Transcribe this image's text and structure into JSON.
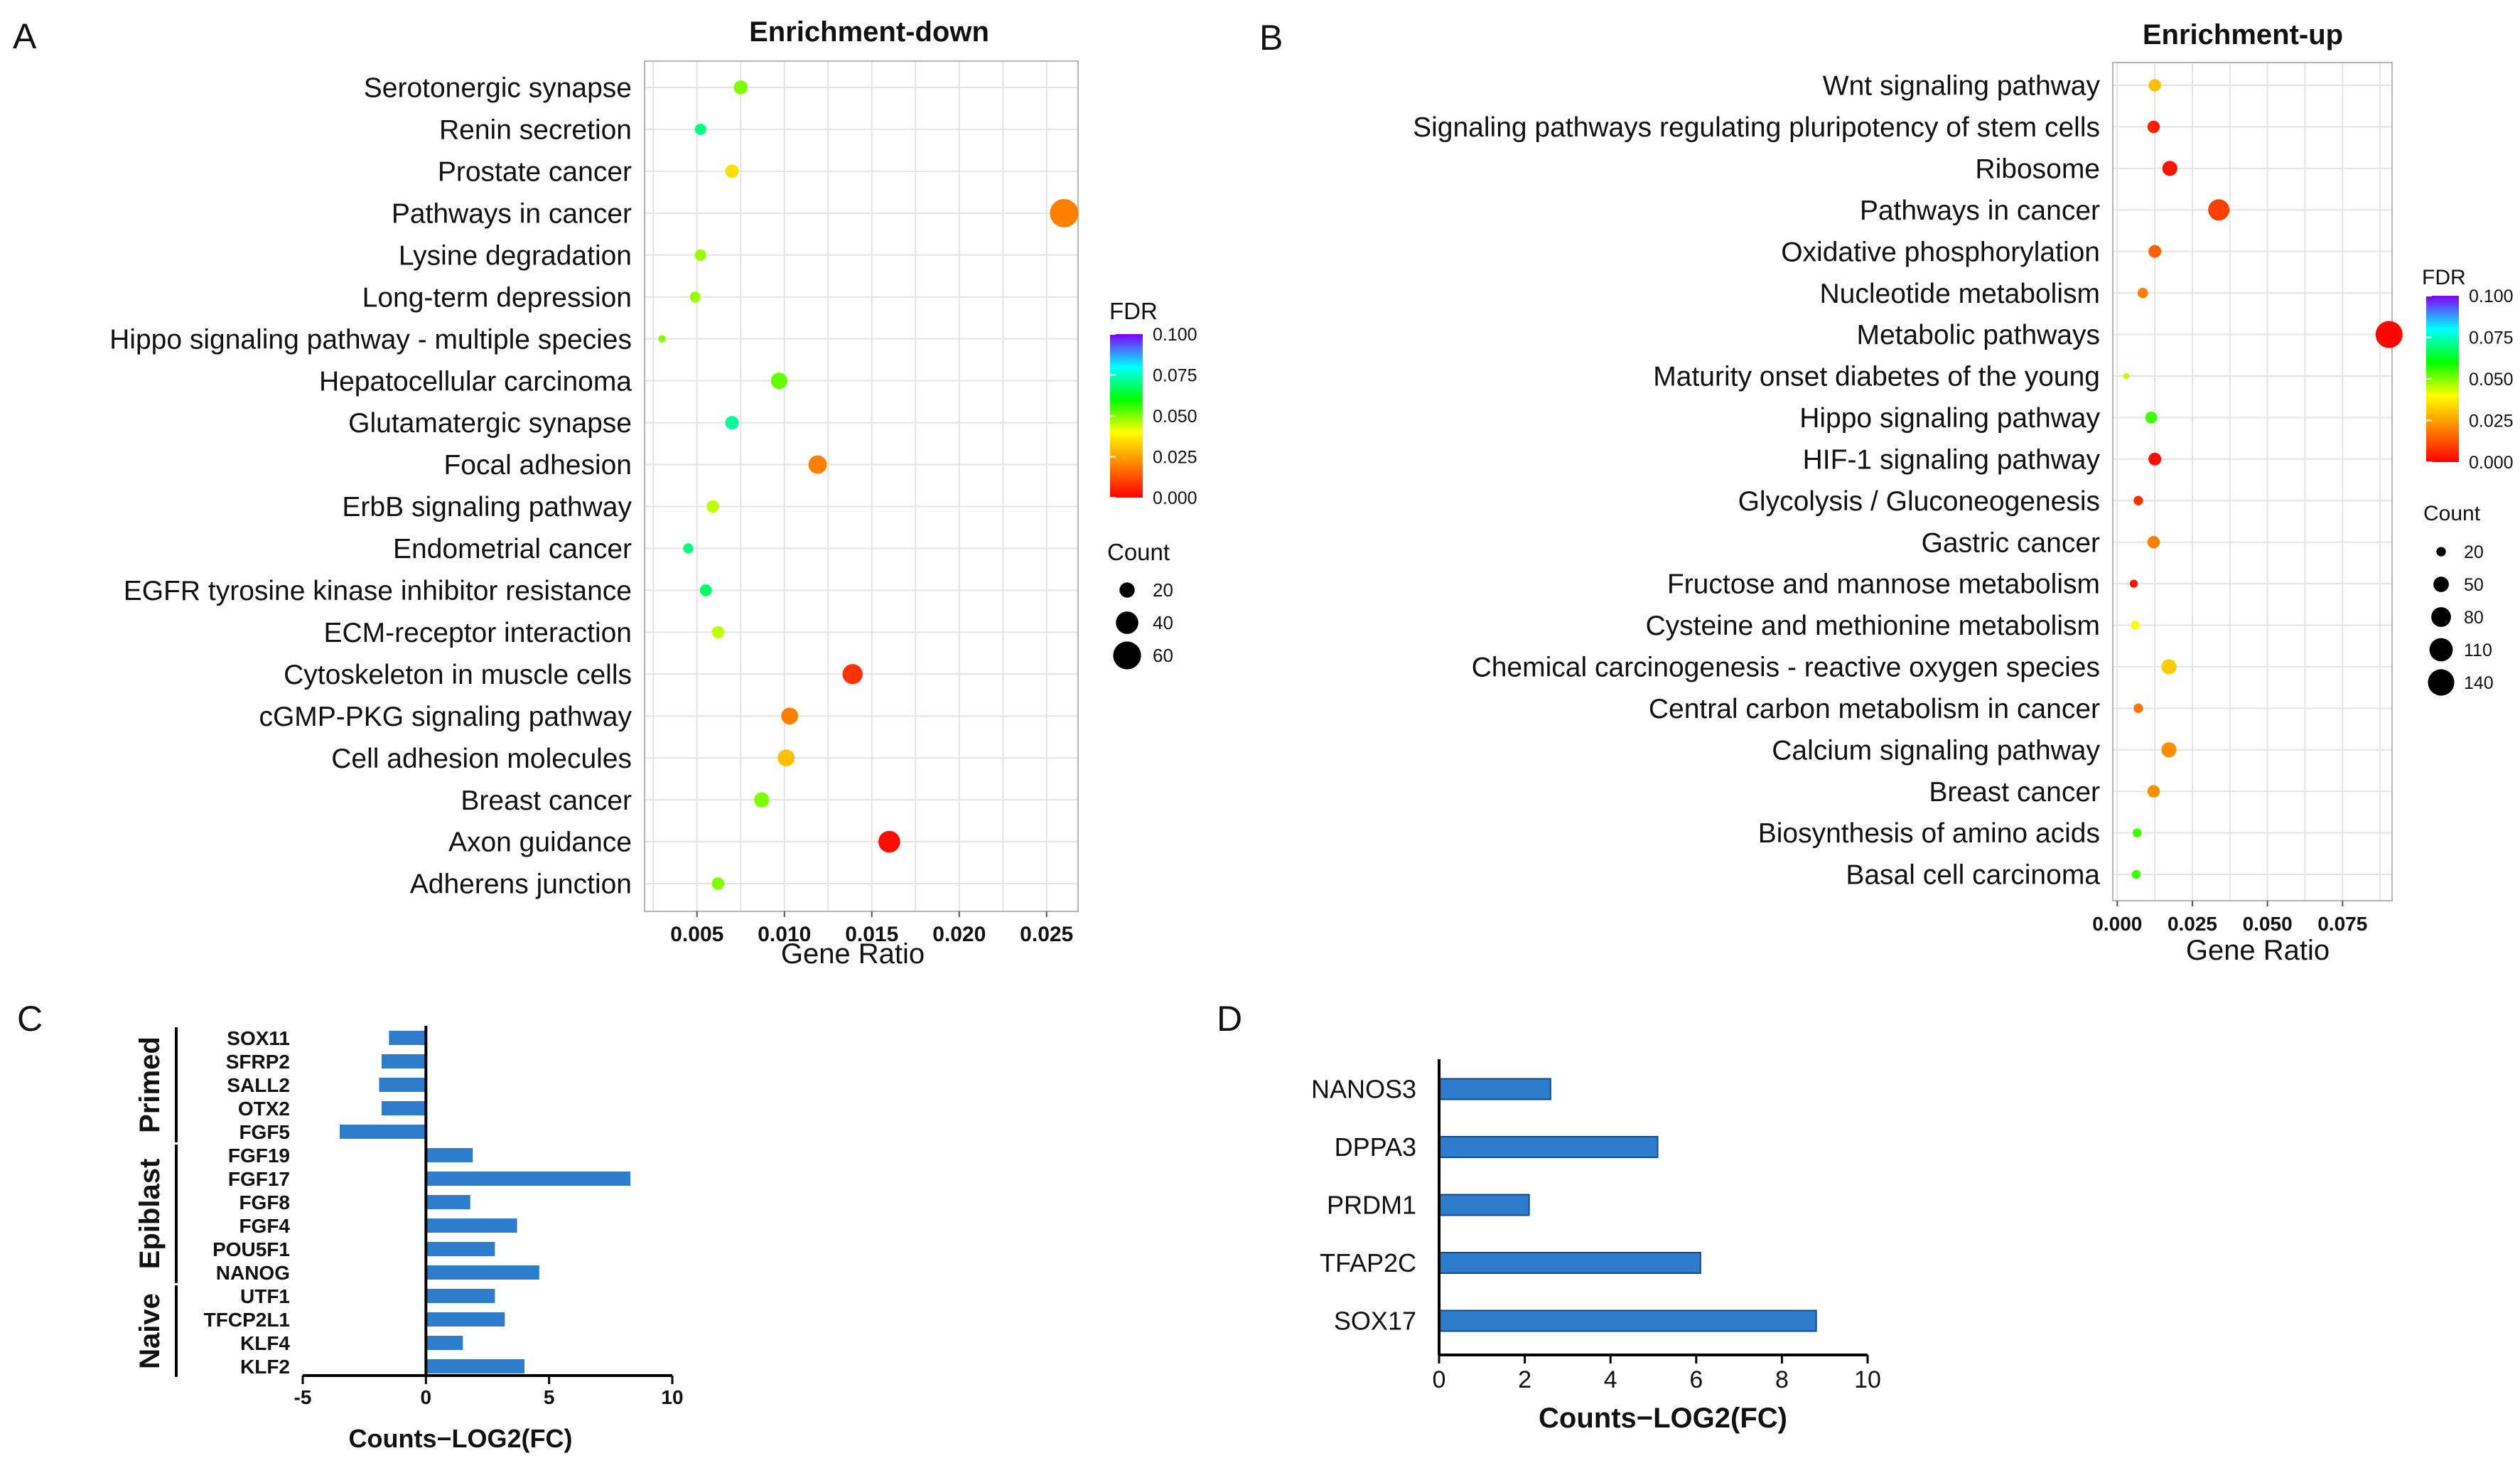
{
  "panels": {
    "a": "A",
    "b": "B",
    "c": "C",
    "d": "D"
  },
  "colors": {
    "bar": "#2e7ccc",
    "grid": "#e4e4e4",
    "frame": "#b5b5b5",
    "fdr_stops": [
      "#ff0000",
      "#ff8000",
      "#ffff00",
      "#00ff00",
      "#00ffff",
      "#8000ff"
    ]
  },
  "chart_data": [
    {
      "id": "A",
      "type": "scatter",
      "title": "Enrichment-down",
      "xlabel": "Gene Ratio",
      "xlim": [
        0.002,
        0.0268
      ],
      "xticks": [
        0.005,
        0.01,
        0.015,
        0.02,
        0.025
      ],
      "xtick_labels": [
        "0.005",
        "0.010",
        "0.015",
        "0.020",
        "0.025"
      ],
      "categories": [
        "Serotonergic synapse",
        "Renin secretion",
        "Prostate cancer",
        "Pathways in cancer",
        "Lysine degradation",
        "Long-term depression",
        "Hippo signaling pathway - multiple species",
        "Hepatocellular carcinoma",
        "Glutamatergic synapse",
        "Focal adhesion",
        "ErbB signaling pathway",
        "Endometrial cancer",
        "EGFR tyrosine kinase inhibitor resistance",
        "ECM-receptor interaction",
        "Cytoskeleton in muscle cells",
        "cGMP-PKG signaling pathway",
        "Cell adhesion molecules",
        "Breast cancer",
        "Axon guidance",
        "Adherens junction"
      ],
      "gene_ratio": [
        0.0075,
        0.0052,
        0.007,
        0.026,
        0.0052,
        0.0049,
        0.003,
        0.0097,
        0.007,
        0.0119,
        0.0059,
        0.0045,
        0.0055,
        0.0062,
        0.0139,
        0.0103,
        0.0101,
        0.0087,
        0.016,
        0.0062
      ],
      "fdr": [
        0.05,
        0.07,
        0.035,
        0.02,
        0.048,
        0.048,
        0.05,
        0.052,
        0.072,
        0.02,
        0.045,
        0.07,
        0.068,
        0.045,
        0.008,
        0.02,
        0.03,
        0.05,
        0.002,
        0.05
      ],
      "count": [
        17,
        12,
        16,
        62,
        12,
        11,
        6,
        23,
        16,
        28,
        14,
        10,
        13,
        14,
        33,
        24,
        24,
        20,
        38,
        14
      ],
      "fdr_legend": {
        "title": "FDR",
        "ticks": [
          "0.100",
          "0.075",
          "0.050",
          "0.025",
          "0.000"
        ],
        "range": [
          0,
          0.1
        ]
      },
      "count_legend": {
        "title": "Count",
        "values": [
          20,
          40,
          60
        ],
        "labels": [
          "20",
          "40",
          "60"
        ]
      }
    },
    {
      "id": "B",
      "type": "scatter",
      "title": "Enrichment-up",
      "xlabel": "Gene Ratio",
      "xlim": [
        -0.0015,
        0.0915
      ],
      "xticks": [
        0.0,
        0.025,
        0.05,
        0.075
      ],
      "xtick_labels": [
        "0.000",
        "0.025",
        "0.050",
        "0.075"
      ],
      "categories": [
        "Wnt signaling pathway",
        "Signaling pathways regulating pluripotency of stem cells",
        "Ribosome",
        "Pathways in cancer",
        "Oxidative phosphorylation",
        "Nucleotide metabolism",
        "Metabolic pathways",
        "Maturity onset diabetes of the young",
        "Hippo signaling pathway",
        "HIF-1 signaling pathway",
        "Glycolysis / Gluconeogenesis",
        "Gastric cancer",
        "Fructose and mannose metabolism",
        "Cysteine and methionine metabolism",
        "Chemical carcinogenesis - reactive oxygen species",
        "Central carbon metabolism in cancer",
        "Calcium signaling pathway",
        "Breast cancer",
        "Biosynthesis of amino acids",
        "Basal cell carcinoma"
      ],
      "gene_ratio": [
        0.0125,
        0.0121,
        0.0175,
        0.0338,
        0.0125,
        0.0085,
        0.0905,
        0.003,
        0.0113,
        0.0125,
        0.007,
        0.0121,
        0.0055,
        0.006,
        0.0172,
        0.007,
        0.0172,
        0.0121,
        0.0066,
        0.0063
      ],
      "fdr": [
        0.03,
        0.005,
        0.003,
        0.01,
        0.015,
        0.02,
        0.001,
        0.045,
        0.055,
        0.002,
        0.008,
        0.02,
        0.003,
        0.04,
        0.032,
        0.018,
        0.022,
        0.022,
        0.055,
        0.055
      ],
      "count": [
        33,
        33,
        48,
        92,
        35,
        24,
        146,
        9,
        31,
        35,
        20,
        33,
        15,
        17,
        48,
        20,
        48,
        33,
        18,
        18
      ],
      "fdr_legend": {
        "title": "FDR",
        "ticks": [
          "0.100",
          "0.075",
          "0.050",
          "0.025",
          "0.000"
        ],
        "range": [
          0,
          0.1
        ]
      },
      "count_legend": {
        "title": "Count",
        "values": [
          20,
          50,
          80,
          110,
          140
        ],
        "labels": [
          "20",
          "50",
          "80",
          "110",
          "140"
        ]
      }
    },
    {
      "id": "C",
      "type": "bar",
      "orientation": "horizontal",
      "xlabel": "Counts−LOG2(FC)",
      "xlim": [
        -5,
        10
      ],
      "xticks": [
        -5,
        0,
        5,
        10
      ],
      "xtick_labels": [
        "-5",
        "0",
        "5",
        "10"
      ],
      "categories": [
        "SOX11",
        "SFRP2",
        "SALL2",
        "OTX2",
        "FGF5",
        "FGF19",
        "FGF17",
        "FGF8",
        "FGF4",
        "POU5F1",
        "NANOG",
        "UTF1",
        "TFCP2L1",
        "KLF4",
        "KLF2"
      ],
      "values": [
        -1.5,
        -1.8,
        -1.9,
        -1.8,
        -3.5,
        1.9,
        8.3,
        1.8,
        3.7,
        2.8,
        4.6,
        2.8,
        3.2,
        1.5,
        4.0
      ],
      "groups": [
        {
          "name": "Primed",
          "start": 0,
          "end": 4
        },
        {
          "name": "Epiblast",
          "start": 5,
          "end": 10
        },
        {
          "name": "Naive",
          "start": 11,
          "end": 14
        }
      ]
    },
    {
      "id": "D",
      "type": "bar",
      "orientation": "horizontal",
      "xlabel": "Counts−LOG2(FC)",
      "xlim": [
        0,
        10
      ],
      "xticks": [
        0,
        2,
        4,
        6,
        8,
        10
      ],
      "xtick_labels": [
        "0",
        "2",
        "4",
        "6",
        "8",
        "10"
      ],
      "categories": [
        "NANOS3",
        "DPPA3",
        "PRDM1",
        "TFAP2C",
        "SOX17"
      ],
      "values": [
        2.6,
        5.1,
        2.1,
        6.1,
        8.8
      ]
    }
  ]
}
